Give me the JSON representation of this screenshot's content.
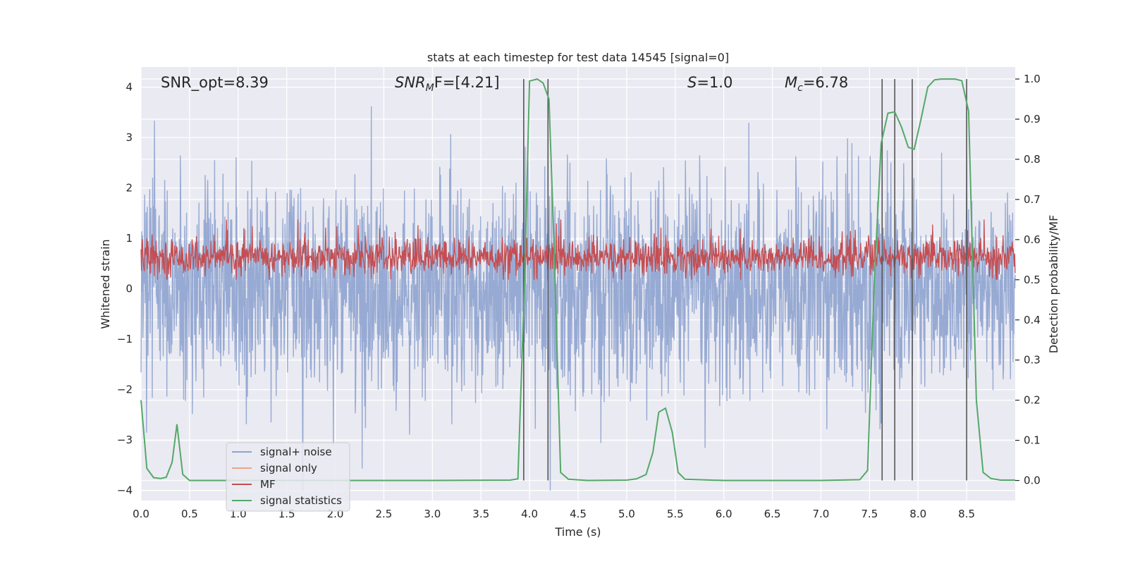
{
  "chart_data": {
    "type": "line",
    "title": "stats at each timestep for test data 14545 [signal=0]",
    "xlabel": "Time (s)",
    "ylabel_left": "Whitened strain",
    "ylabel_right": "Detection probability/MF",
    "xlim": [
      0.0,
      9.0
    ],
    "ylim_left": [
      -4.2,
      4.4
    ],
    "ylim_right": [
      -0.05,
      1.03
    ],
    "x_ticks": [
      "0.0",
      "0.5",
      "1.0",
      "1.5",
      "2.0",
      "2.5",
      "3.0",
      "3.5",
      "4.0",
      "4.5",
      "5.0",
      "5.5",
      "6.0",
      "6.5",
      "7.0",
      "7.5",
      "8.0",
      "8.5"
    ],
    "y_ticks_left": [
      "4",
      "3",
      "2",
      "1",
      "0",
      "−1",
      "−2",
      "−3",
      "−4"
    ],
    "y_ticks_right": [
      "1.0",
      "0.9",
      "0.8",
      "0.7",
      "0.6",
      "0.5",
      "0.4",
      "0.3",
      "0.2",
      "0.1",
      "0.0"
    ],
    "grid": true,
    "legend_position": "lower-left",
    "annotations": [
      {
        "base": "SNR_opt=8.39",
        "italic": false
      },
      {
        "base": "SNR",
        "sub": "M",
        "rest": "F=[4.21]",
        "italic": true
      },
      {
        "base": "S",
        "rest": "=1.0",
        "italic": true
      },
      {
        "base": "M",
        "sub": "c",
        "rest": "=6.78",
        "italic": true
      }
    ],
    "series": [
      {
        "name": "signal+ noise",
        "color": "#8ea3cf",
        "style": "dense noise, amplitude approx ±2 with spikes up to 4 and down to -4",
        "y_range": [
          -4.0,
          4.0
        ]
      },
      {
        "name": "signal only",
        "color": "#e8a68b",
        "values": []
      },
      {
        "name": "MF",
        "color": "#c44e52",
        "axis": "right",
        "style": "dense noise around 0.55, between 0.5 and 0.65",
        "y_range": [
          0.5,
          0.65
        ]
      },
      {
        "name": "signal statistics",
        "color": "#55a868",
        "axis": "right",
        "x": [
          0.0,
          0.06,
          0.13,
          0.2,
          0.26,
          0.32,
          0.37,
          0.43,
          0.5,
          1.0,
          2.0,
          3.0,
          3.8,
          3.88,
          3.95,
          4.0,
          4.08,
          4.14,
          4.2,
          4.25,
          4.32,
          4.4,
          4.6,
          5.0,
          5.1,
          5.2,
          5.27,
          5.33,
          5.4,
          5.47,
          5.53,
          5.6,
          6.0,
          7.0,
          7.4,
          7.48,
          7.55,
          7.62,
          7.69,
          7.76,
          7.83,
          7.9,
          7.96,
          8.03,
          8.1,
          8.17,
          8.24,
          8.31,
          8.38,
          8.45,
          8.52,
          8.6,
          8.67,
          8.75,
          8.85,
          9.0
        ],
        "values": [
          0.2,
          0.03,
          0.007,
          0.005,
          0.008,
          0.045,
          0.14,
          0.015,
          0.0,
          0.0,
          0.0,
          0.0,
          0.001,
          0.004,
          0.5,
          0.995,
          1.0,
          0.99,
          0.95,
          0.6,
          0.02,
          0.003,
          0.0,
          0.001,
          0.004,
          0.015,
          0.07,
          0.17,
          0.18,
          0.12,
          0.02,
          0.003,
          0.0,
          0.0,
          0.002,
          0.025,
          0.5,
          0.84,
          0.915,
          0.918,
          0.88,
          0.83,
          0.825,
          0.9,
          0.98,
          0.998,
          1.0,
          1.0,
          1.0,
          0.996,
          0.92,
          0.2,
          0.02,
          0.005,
          0.001,
          0.001
        ]
      }
    ],
    "vertical_lines_x": [
      3.94,
      4.19,
      7.63,
      7.76,
      7.94,
      8.5
    ]
  }
}
